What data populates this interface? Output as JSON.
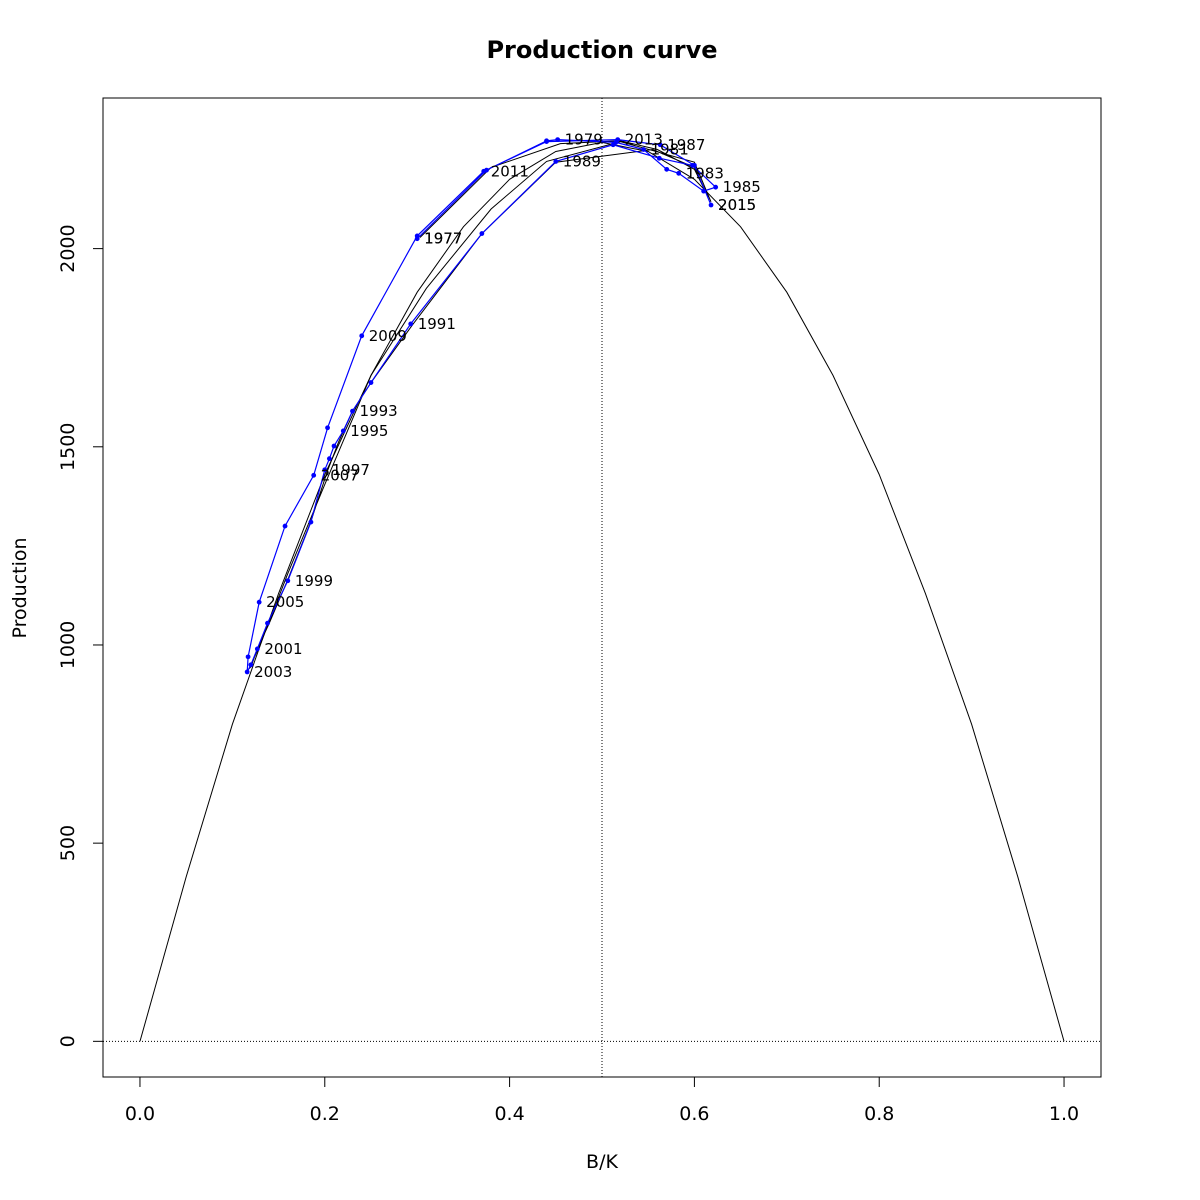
{
  "chart_data": {
    "type": "line",
    "title": "Production curve",
    "xlabel": "B/K",
    "ylabel": "Production",
    "xlim": [
      -0.04,
      1.04
    ],
    "ylim": [
      -90,
      2380
    ],
    "x_ticks": [
      "0.0",
      "0.2",
      "0.4",
      "0.6",
      "0.8",
      "1.0"
    ],
    "y_ticks": [
      "0",
      "500",
      "1000",
      "1500",
      "2000"
    ],
    "reference_lines": {
      "vertical_x": 0.5,
      "horizontal_y": 0
    },
    "colors": {
      "observed": "#0000ff",
      "model": "#000000"
    },
    "series": [
      {
        "kind": "model-curve",
        "points": [
          [
            0.0,
            0
          ],
          [
            0.05,
            415
          ],
          [
            0.1,
            800
          ],
          [
            0.15,
            1130
          ],
          [
            0.2,
            1430
          ],
          [
            0.25,
            1680
          ],
          [
            0.3,
            1890
          ],
          [
            0.35,
            2055
          ],
          [
            0.4,
            2175
          ],
          [
            0.45,
            2245
          ],
          [
            0.5,
            2268
          ],
          [
            0.55,
            2245
          ],
          [
            0.6,
            2175
          ],
          [
            0.65,
            2055
          ],
          [
            0.7,
            1890
          ],
          [
            0.75,
            1680
          ],
          [
            0.8,
            1430
          ],
          [
            0.85,
            1130
          ],
          [
            0.9,
            800
          ],
          [
            0.95,
            415
          ],
          [
            1.0,
            0
          ]
        ]
      },
      {
        "kind": "fitted-trajectory",
        "points": [
          [
            0.303,
            2028
          ],
          [
            0.38,
            2205
          ],
          [
            0.455,
            2265
          ],
          [
            0.52,
            2272
          ],
          [
            0.56,
            2250
          ],
          [
            0.6,
            2200
          ],
          [
            0.615,
            2130
          ],
          [
            0.6,
            2205
          ],
          [
            0.555,
            2250
          ],
          [
            0.45,
            2218
          ],
          [
            0.37,
            2038
          ],
          [
            0.295,
            1808
          ],
          [
            0.25,
            1662
          ],
          [
            0.23,
            1590
          ],
          [
            0.215,
            1512
          ],
          [
            0.203,
            1440
          ],
          [
            0.185,
            1312
          ],
          [
            0.16,
            1165
          ],
          [
            0.14,
            1055
          ],
          [
            0.128,
            995
          ],
          [
            0.12,
            945
          ],
          [
            0.118,
            940
          ],
          [
            0.13,
            1000
          ],
          [
            0.16,
            1180
          ],
          [
            0.2,
            1405
          ],
          [
            0.25,
            1680
          ],
          [
            0.31,
            1900
          ],
          [
            0.38,
            2100
          ],
          [
            0.44,
            2220
          ],
          [
            0.52,
            2270
          ],
          [
            0.6,
            2218
          ],
          [
            0.618,
            2118
          ]
        ]
      },
      {
        "kind": "observed",
        "points": [
          [
            0.3,
            2025
          ],
          [
            0.375,
            2198
          ],
          [
            0.44,
            2272
          ],
          [
            0.452,
            2275
          ],
          [
            0.515,
            2268
          ],
          [
            0.545,
            2250
          ],
          [
            0.57,
            2200
          ],
          [
            0.583,
            2190
          ],
          [
            0.61,
            2145
          ],
          [
            0.623,
            2155
          ],
          [
            0.598,
            2210
          ],
          [
            0.562,
            2228
          ],
          [
            0.512,
            2262
          ],
          [
            0.45,
            2220
          ],
          [
            0.37,
            2038
          ],
          [
            0.293,
            1810
          ],
          [
            0.25,
            1662
          ],
          [
            0.23,
            1590
          ],
          [
            0.22,
            1540
          ],
          [
            0.21,
            1502
          ],
          [
            0.205,
            1470
          ],
          [
            0.2,
            1442
          ],
          [
            0.185,
            1310
          ],
          [
            0.16,
            1162
          ],
          [
            0.138,
            1055
          ],
          [
            0.127,
            990
          ],
          [
            0.12,
            950
          ],
          [
            0.116,
            932
          ],
          [
            0.117,
            970
          ],
          [
            0.129,
            1108
          ],
          [
            0.157,
            1300
          ],
          [
            0.188,
            1428
          ],
          [
            0.203,
            1548
          ],
          [
            0.24,
            1780
          ],
          [
            0.3,
            2032
          ],
          [
            0.372,
            2195
          ],
          [
            0.44,
            2270
          ],
          [
            0.517,
            2275
          ],
          [
            0.563,
            2262
          ],
          [
            0.6,
            2210
          ],
          [
            0.618,
            2110
          ]
        ]
      }
    ],
    "year_labels": [
      {
        "text": "1977",
        "x": 0.3,
        "y": 2025
      },
      {
        "text": "1977",
        "x": 0.3,
        "y": 2025
      },
      {
        "text": "1979",
        "x": 0.452,
        "y": 2275
      },
      {
        "text": "1981",
        "x": 0.545,
        "y": 2250
      },
      {
        "text": "1983",
        "x": 0.583,
        "y": 2190
      },
      {
        "text": "1985",
        "x": 0.623,
        "y": 2155
      },
      {
        "text": "1987",
        "x": 0.563,
        "y": 2262
      },
      {
        "text": "1989",
        "x": 0.45,
        "y": 2220
      },
      {
        "text": "1991",
        "x": 0.293,
        "y": 1810
      },
      {
        "text": "1993",
        "x": 0.23,
        "y": 1590
      },
      {
        "text": "1995",
        "x": 0.22,
        "y": 1540
      },
      {
        "text": "1997",
        "x": 0.2,
        "y": 1442
      },
      {
        "text": "1999",
        "x": 0.16,
        "y": 1162
      },
      {
        "text": "2001",
        "x": 0.127,
        "y": 990
      },
      {
        "text": "2003",
        "x": 0.116,
        "y": 932
      },
      {
        "text": "2005",
        "x": 0.129,
        "y": 1108
      },
      {
        "text": "2007",
        "x": 0.188,
        "y": 1428
      },
      {
        "text": "2009",
        "x": 0.24,
        "y": 1780
      },
      {
        "text": "2011",
        "x": 0.372,
        "y": 2195
      },
      {
        "text": "2013",
        "x": 0.517,
        "y": 2275
      },
      {
        "text": "2015",
        "x": 0.618,
        "y": 2110
      },
      {
        "text": "2015",
        "x": 0.618,
        "y": 2110
      }
    ]
  }
}
